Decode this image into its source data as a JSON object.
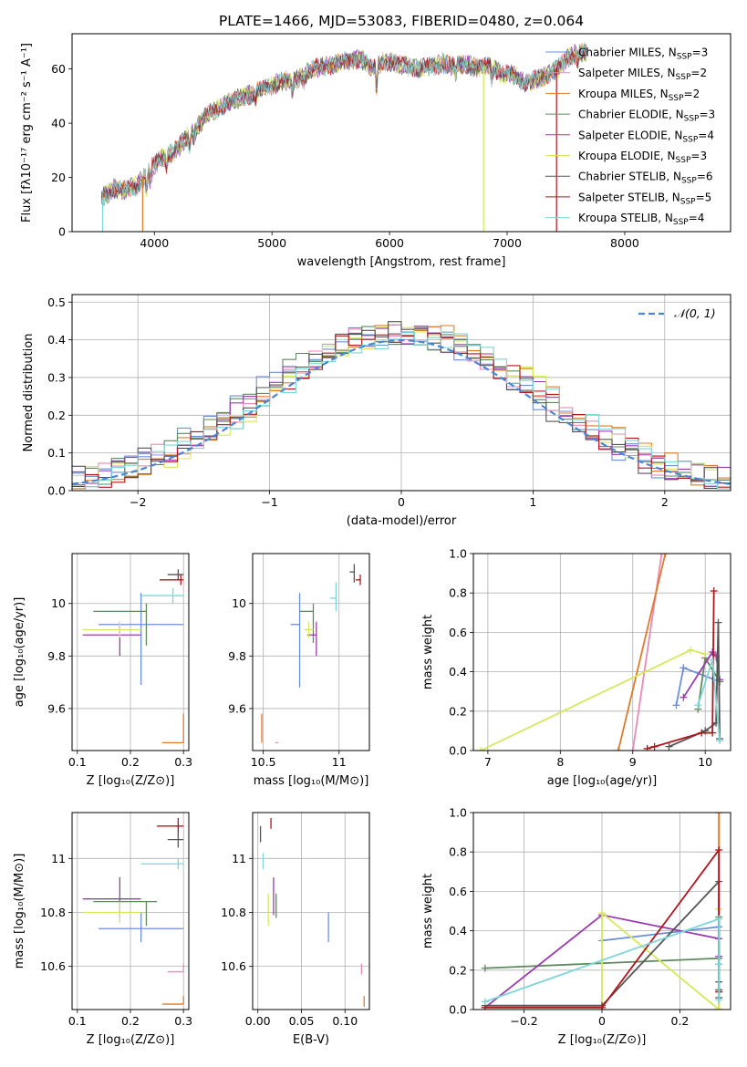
{
  "figure": {
    "title": "PLATE=1466, MJD=53083, FIBERID=0480, z=0.064"
  },
  "colors": {
    "Chabrier MILES": "#6b8fd8",
    "Salpeter MILES": "#e88ab5",
    "Kroupa MILES": "#e07b2a",
    "Chabrier ELODIE": "#5e8a5e",
    "Salpeter ELODIE": "#9b3bb0",
    "Kroupa ELODIE": "#d6e85a",
    "Chabrier STELIB": "#555555",
    "Salpeter STELIB": "#b0161c",
    "Kroupa STELIB": "#7fd6d8"
  },
  "chart_data": [
    {
      "id": "spectrum",
      "type": "line",
      "title": "PLATE=1466, MJD=53083, FIBERID=0480, z=0.064",
      "xlabel": "wavelength [Angstrom, rest frame]",
      "ylabel": "Flux [fλ10⁻¹⁷ erg cm⁻² s⁻¹ A⁻¹]",
      "xlim": [
        3300,
        8900
      ],
      "ylim": [
        0,
        73
      ],
      "xticks": [
        4000,
        5000,
        6000,
        7000,
        8000
      ],
      "yticks": [
        0,
        20,
        40,
        60
      ],
      "legend_position": "top-right",
      "legend": [
        {
          "label": "Chabrier MILES, N",
          "sub": "SSP",
          "suffix": "=3",
          "model": "Chabrier MILES"
        },
        {
          "label": "Salpeter MILES, N",
          "sub": "SSP",
          "suffix": "=2",
          "model": "Salpeter MILES"
        },
        {
          "label": "Kroupa MILES, N",
          "sub": "SSP",
          "suffix": "=2",
          "model": "Kroupa MILES"
        },
        {
          "label": "Chabrier ELODIE, N",
          "sub": "SSP",
          "suffix": "=3",
          "model": "Chabrier ELODIE"
        },
        {
          "label": "Salpeter ELODIE, N",
          "sub": "SSP",
          "suffix": "=4",
          "model": "Salpeter ELODIE"
        },
        {
          "label": "Kroupa ELODIE, N",
          "sub": "SSP",
          "suffix": "=3",
          "model": "Kroupa ELODIE"
        },
        {
          "label": "Chabrier STELIB, N",
          "sub": "SSP",
          "suffix": "=6",
          "model": "Chabrier STELIB"
        },
        {
          "label": "Salpeter STELIB, N",
          "sub": "SSP",
          "suffix": "=5",
          "model": "Salpeter STELIB"
        },
        {
          "label": "Kroupa STELIB, N",
          "sub": "SSP",
          "suffix": "=4",
          "model": "Kroupa STELIB"
        }
      ],
      "envelope": {
        "x": [
          3550,
          3650,
          3750,
          3850,
          3950,
          4050,
          4150,
          4250,
          4350,
          4450,
          4550,
          4650,
          4750,
          4850,
          4950,
          5050,
          5150,
          5250,
          5350,
          5450,
          5550,
          5650,
          5750,
          5850,
          5950,
          6050,
          6150,
          6250,
          6350,
          6450,
          6550,
          6650,
          6750,
          6850,
          6950,
          7050,
          7150,
          7250,
          7350,
          7450,
          7550,
          7650
        ],
        "y": [
          12,
          16,
          15,
          17,
          22,
          27,
          29,
          33,
          38,
          43,
          46,
          48,
          50,
          51,
          53,
          55,
          56,
          57,
          60,
          61,
          62,
          63,
          64,
          60,
          63,
          62,
          61,
          60,
          61,
          62,
          61,
          62,
          60,
          62,
          58,
          58,
          55,
          56,
          58,
          61,
          65,
          66
        ]
      },
      "dropouts": [
        {
          "x": 3900,
          "model": "Kroupa MILES"
        },
        {
          "x": 6800,
          "model": "Kroupa ELODIE"
        },
        {
          "x": 7420,
          "model": "Salpeter STELIB"
        },
        {
          "x": 3560,
          "model": "Kroupa STELIB"
        }
      ]
    },
    {
      "id": "residuals",
      "type": "histogram",
      "xlabel": "(data-model)/error",
      "ylabel": "Normed distribution",
      "xlim": [
        -2.5,
        2.5
      ],
      "ylim": [
        0,
        0.52
      ],
      "xticks": [
        -2,
        -1,
        0,
        1,
        2
      ],
      "yticks": [
        0.0,
        0.1,
        0.2,
        0.3,
        0.4,
        0.5
      ],
      "legend_position": "top-right",
      "reference_curve": {
        "label": "𝒩(0, 1)",
        "type": "gaussian",
        "mean": 0,
        "sigma": 1
      },
      "bin_width": 0.1
    },
    {
      "id": "Z-age",
      "type": "errorbar",
      "xlabel": "Z [log₁₀(Z/Z⊙)]",
      "ylabel": "age  [log₁₀(age/yr)]",
      "xlim": [
        0.09,
        0.31
      ],
      "ylim": [
        9.44,
        10.19
      ],
      "xticks": [
        0.1,
        0.2,
        0.3
      ],
      "yticks": [
        9.6,
        9.8,
        10.0
      ],
      "points": [
        {
          "model": "Chabrier MILES",
          "x": 0.22,
          "xerr": [
            0.08,
            0.08
          ],
          "y": 9.92,
          "yerr": [
            0.23,
            0.12
          ]
        },
        {
          "model": "Salpeter MILES",
          "x": 0.3,
          "xerr": [
            0.0,
            0.0
          ],
          "y": 9.46,
          "yerr": [
            0.0,
            0.0
          ]
        },
        {
          "model": "Kroupa MILES",
          "x": 0.3,
          "xerr": [
            0.04,
            0.0
          ],
          "y": 9.47,
          "yerr": [
            0.0,
            0.11
          ]
        },
        {
          "model": "Chabrier ELODIE",
          "x": 0.23,
          "xerr": [
            0.1,
            0.0
          ],
          "y": 9.97,
          "yerr": [
            0.13,
            0.03
          ]
        },
        {
          "model": "Salpeter ELODIE",
          "x": 0.18,
          "xerr": [
            0.07,
            0.04
          ],
          "y": 9.88,
          "yerr": [
            0.08,
            0.05
          ]
        },
        {
          "model": "Kroupa ELODIE",
          "x": 0.18,
          "xerr": [
            0.07,
            0.04
          ],
          "y": 9.9,
          "yerr": [
            0.03,
            0.03
          ]
        },
        {
          "model": "Chabrier STELIB",
          "x": 0.29,
          "xerr": [
            0.02,
            0.01
          ],
          "y": 10.11,
          "yerr": [
            0.02,
            0.02
          ]
        },
        {
          "model": "Salpeter STELIB",
          "x": 0.295,
          "xerr": [
            0.04,
            0.005
          ],
          "y": 10.09,
          "yerr": [
            0.02,
            0.02
          ]
        },
        {
          "model": "Kroupa STELIB",
          "x": 0.28,
          "xerr": [
            0.06,
            0.02
          ],
          "y": 10.03,
          "yerr": [
            0.03,
            0.03
          ]
        }
      ]
    },
    {
      "id": "mass-age",
      "type": "errorbar",
      "xlabel": "mass [log₁₀(M/M⊙)]",
      "ylabel": "",
      "xlim": [
        10.43,
        11.2
      ],
      "ylim": [
        9.44,
        10.19
      ],
      "xticks": [
        10.5,
        11.0
      ],
      "yticks": [
        9.6,
        9.8,
        10.0
      ],
      "points": [
        {
          "model": "Chabrier MILES",
          "x": 10.74,
          "xerr": [
            0.06,
            0.0
          ],
          "y": 9.92,
          "yerr": [
            0.24,
            0.12
          ]
        },
        {
          "model": "Salpeter MILES",
          "x": 10.6,
          "xerr": [
            0.02,
            0.0
          ],
          "y": 9.47,
          "yerr": [
            0.0,
            0.0
          ]
        },
        {
          "model": "Kroupa MILES",
          "x": 10.49,
          "xerr": [
            0.0,
            0.0
          ],
          "y": 9.47,
          "yerr": [
            0.0,
            0.11
          ]
        },
        {
          "model": "Chabrier ELODIE",
          "x": 10.83,
          "xerr": [
            0.09,
            0.0
          ],
          "y": 9.97,
          "yerr": [
            0.12,
            0.03
          ]
        },
        {
          "model": "Salpeter ELODIE",
          "x": 10.85,
          "xerr": [
            0.06,
            0.0
          ],
          "y": 9.88,
          "yerr": [
            0.08,
            0.05
          ]
        },
        {
          "model": "Kroupa ELODIE",
          "x": 10.8,
          "xerr": [
            0.03,
            0.03
          ],
          "y": 9.9,
          "yerr": [
            0.03,
            0.03
          ]
        },
        {
          "model": "Chabrier STELIB",
          "x": 11.1,
          "xerr": [
            0.03,
            0.0
          ],
          "y": 10.12,
          "yerr": [
            0.04,
            0.03
          ]
        },
        {
          "model": "Salpeter STELIB",
          "x": 11.14,
          "xerr": [
            0.03,
            0.0
          ],
          "y": 10.09,
          "yerr": [
            0.02,
            0.02
          ]
        },
        {
          "model": "Kroupa STELIB",
          "x": 10.98,
          "xerr": [
            0.04,
            0.0
          ],
          "y": 10.02,
          "yerr": [
            0.05,
            0.06
          ]
        }
      ]
    },
    {
      "id": "age-massweight",
      "type": "line",
      "xlabel": "age  [log₁₀(age/yr)]",
      "ylabel": "mass weight",
      "xlim": [
        6.8,
        10.35
      ],
      "ylim": [
        0,
        1
      ],
      "xticks": [
        7,
        8,
        9,
        10
      ],
      "yticks": [
        0.0,
        0.2,
        0.4,
        0.6,
        0.8,
        1.0
      ],
      "series": [
        {
          "model": "Chabrier MILES",
          "x": [
            10.2,
            9.7,
            9.6
          ],
          "y": [
            0.35,
            0.42,
            0.23
          ]
        },
        {
          "model": "Salpeter MILES",
          "x": [
            9.0,
            9.4
          ],
          "y": [
            0.0,
            1.0
          ]
        },
        {
          "model": "Kroupa MILES",
          "x": [
            8.8,
            9.45
          ],
          "y": [
            0.0,
            1.0
          ]
        },
        {
          "model": "Chabrier ELODIE",
          "x": [
            10.2,
            10.0,
            9.9
          ],
          "y": [
            0.35,
            0.47,
            0.21
          ]
        },
        {
          "model": "Salpeter ELODIE",
          "x": [
            9.7,
            10.1,
            10.15,
            10.2
          ],
          "y": [
            0.27,
            0.5,
            0.48,
            0.36
          ]
        },
        {
          "model": "Kroupa ELODIE",
          "x": [
            6.9,
            9.8,
            10.0
          ],
          "y": [
            0.0,
            0.51,
            0.49
          ]
        },
        {
          "model": "Chabrier STELIB",
          "x": [
            9.5,
            10.0,
            10.15,
            10.18,
            10.2
          ],
          "y": [
            0.02,
            0.1,
            0.14,
            0.65,
            0.06
          ]
        },
        {
          "model": "Salpeter STELIB",
          "x": [
            9.2,
            9.3,
            9.95,
            10.1,
            10.12
          ],
          "y": [
            0.01,
            0.02,
            0.09,
            0.09,
            0.81
          ]
        },
        {
          "model": "Kroupa STELIB",
          "x": [
            9.9,
            10.1,
            10.2
          ],
          "y": [
            0.23,
            0.46,
            0.05
          ]
        }
      ]
    },
    {
      "id": "Z-mass",
      "type": "errorbar",
      "xlabel": "Z [log₁₀(Z/Z⊙)]",
      "ylabel": "mass [log₁₀(M/M⊙)]",
      "xlim": [
        0.09,
        0.31
      ],
      "ylim": [
        10.44,
        11.17
      ],
      "xticks": [
        0.1,
        0.2,
        0.3
      ],
      "yticks": [
        10.6,
        10.8,
        11.0
      ],
      "points": [
        {
          "model": "Chabrier MILES",
          "x": 0.22,
          "xerr": [
            0.08,
            0.08
          ],
          "y": 10.74,
          "yerr": [
            0.05,
            0.06
          ]
        },
        {
          "model": "Salpeter MILES",
          "x": 0.3,
          "xerr": [
            0.03,
            0.0
          ],
          "y": 10.58,
          "yerr": [
            0.0,
            0.03
          ]
        },
        {
          "model": "Kroupa MILES",
          "x": 0.3,
          "xerr": [
            0.04,
            0.0
          ],
          "y": 10.46,
          "yerr": [
            0.0,
            0.03
          ]
        },
        {
          "model": "Chabrier ELODIE",
          "x": 0.23,
          "xerr": [
            0.1,
            0.02
          ],
          "y": 10.84,
          "yerr": [
            0.09,
            0.0
          ]
        },
        {
          "model": "Salpeter ELODIE",
          "x": 0.18,
          "xerr": [
            0.07,
            0.04
          ],
          "y": 10.85,
          "yerr": [
            0.07,
            0.08
          ]
        },
        {
          "model": "Kroupa ELODIE",
          "x": 0.18,
          "xerr": [
            0.07,
            0.04
          ],
          "y": 10.8,
          "yerr": [
            0.04,
            0.04
          ]
        },
        {
          "model": "Chabrier STELIB",
          "x": 0.29,
          "xerr": [
            0.02,
            0.01
          ],
          "y": 11.07,
          "yerr": [
            0.03,
            0.02
          ]
        },
        {
          "model": "Salpeter STELIB",
          "x": 0.29,
          "xerr": [
            0.04,
            0.01
          ],
          "y": 11.12,
          "yerr": [
            0.03,
            0.03
          ]
        },
        {
          "model": "Kroupa STELIB",
          "x": 0.29,
          "xerr": [
            0.07,
            0.01
          ],
          "y": 10.98,
          "yerr": [
            0.02,
            0.02
          ]
        }
      ]
    },
    {
      "id": "ebv-mass",
      "type": "errorbar",
      "xlabel": "E(B-V)",
      "ylabel": "",
      "xlim": [
        -0.006,
        0.128
      ],
      "ylim": [
        10.44,
        11.17
      ],
      "xticks": [
        0.0,
        0.05,
        0.1
      ],
      "xtick_labels": [
        "0.00",
        "0.05",
        "0.10"
      ],
      "yticks": [
        10.6,
        10.8,
        11.0
      ],
      "points": [
        {
          "model": "Chabrier MILES",
          "x": 0.081,
          "y": 10.74,
          "yerr": [
            0.05,
            0.06
          ]
        },
        {
          "model": "Salpeter MILES",
          "x": 0.119,
          "y": 10.59,
          "yerr": [
            0.02,
            0.02
          ]
        },
        {
          "model": "Kroupa MILES",
          "x": 0.122,
          "y": 10.47,
          "yerr": [
            0.02,
            0.02
          ]
        },
        {
          "model": "Chabrier ELODIE",
          "x": 0.021,
          "y": 10.83,
          "yerr": [
            0.05,
            0.04
          ]
        },
        {
          "model": "Salpeter ELODIE",
          "x": 0.018,
          "y": 10.85,
          "yerr": [
            0.06,
            0.08
          ]
        },
        {
          "model": "Kroupa ELODIE",
          "x": 0.012,
          "y": 10.81,
          "yerr": [
            0.06,
            0.06
          ]
        },
        {
          "model": "Chabrier STELIB",
          "x": 0.003,
          "y": 11.09,
          "yerr": [
            0.03,
            0.03
          ]
        },
        {
          "model": "Salpeter STELIB",
          "x": 0.015,
          "y": 11.13,
          "yerr": [
            0.02,
            0.02
          ]
        },
        {
          "model": "Kroupa STELIB",
          "x": 0.006,
          "y": 10.99,
          "yerr": [
            0.03,
            0.03
          ]
        }
      ]
    },
    {
      "id": "Z-massweight",
      "type": "line",
      "xlabel": "Z [log₁₀(Z/Z⊙)]",
      "ylabel": "mass weight",
      "xlim": [
        -0.33,
        0.33
      ],
      "ylim": [
        0,
        1
      ],
      "xticks": [
        -0.2,
        0.0,
        0.2
      ],
      "yticks": [
        0.0,
        0.2,
        0.4,
        0.6,
        0.8,
        1.0
      ],
      "series": [
        {
          "model": "Chabrier MILES",
          "x": [
            0.0,
            0.3,
            0.3
          ],
          "y": [
            0.35,
            0.42,
            0.23
          ]
        },
        {
          "model": "Salpeter MILES",
          "x": [
            0.3,
            0.3
          ],
          "y": [
            0.0,
            1.0
          ]
        },
        {
          "model": "Kroupa MILES",
          "x": [
            0.3,
            0.3
          ],
          "y": [
            0.0,
            1.0
          ]
        },
        {
          "model": "Chabrier ELODIE",
          "x": [
            -0.3,
            0.3,
            0.3
          ],
          "y": [
            0.21,
            0.26,
            0.47
          ]
        },
        {
          "model": "Salpeter ELODIE",
          "x": [
            -0.3,
            0.0,
            0.3,
            0.3
          ],
          "y": [
            0.01,
            0.48,
            0.36,
            0.27
          ]
        },
        {
          "model": "Kroupa ELODIE",
          "x": [
            0.0,
            0.0,
            0.3,
            0.3
          ],
          "y": [
            0.0,
            0.49,
            0.0,
            0.51
          ]
        },
        {
          "model": "Chabrier STELIB",
          "x": [
            -0.3,
            0.0,
            0.3,
            0.3,
            0.3,
            0.3
          ],
          "y": [
            0.02,
            0.02,
            0.65,
            0.1,
            0.14,
            0.06
          ]
        },
        {
          "model": "Salpeter STELIB",
          "x": [
            -0.3,
            0.0,
            0.3,
            0.3,
            0.3
          ],
          "y": [
            0.01,
            0.01,
            0.81,
            0.09,
            0.09
          ]
        },
        {
          "model": "Kroupa STELIB",
          "x": [
            -0.3,
            0.3,
            0.3,
            0.3
          ],
          "y": [
            0.04,
            0.46,
            0.23,
            0.05
          ]
        }
      ]
    }
  ]
}
